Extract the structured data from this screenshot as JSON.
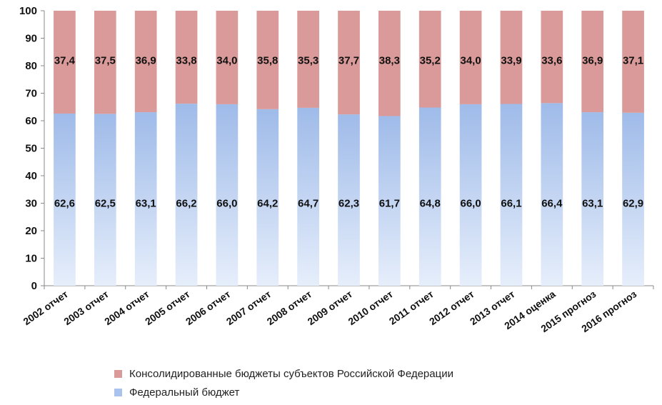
{
  "chart_data": {
    "type": "bar",
    "stacked": true,
    "categories": [
      "2002 отчет",
      "2003 отчет",
      "2004 отчет",
      "2005 отчет",
      "2006 отчет",
      "2007 отчет",
      "2008 отчет",
      "2009 отчет",
      "2010 отчет",
      "2011 отчет",
      "2012 отчет",
      "2013 отчет",
      "2014 оценка",
      "2015 прогноз",
      "2016 прогноз"
    ],
    "series": [
      {
        "name": "Федеральный бюджет",
        "color": "#a9c3ec",
        "values": [
          62.6,
          62.5,
          63.1,
          66.2,
          66.0,
          64.2,
          64.7,
          62.3,
          61.7,
          64.8,
          66.0,
          66.1,
          66.4,
          63.1,
          62.9
        ],
        "labels": [
          "62,6",
          "62,5",
          "63,1",
          "66,2",
          "66,0",
          "64,2",
          "64,7",
          "62,3",
          "61,7",
          "64,8",
          "66,0",
          "66,1",
          "66,4",
          "63,1",
          "62,9"
        ]
      },
      {
        "name": "Консолидированные бюджеты субъектов Российской Федерации",
        "color": "#d99a99",
        "values": [
          37.4,
          37.5,
          36.9,
          33.8,
          34.0,
          35.8,
          35.3,
          37.7,
          38.3,
          35.2,
          34.0,
          33.9,
          33.6,
          36.9,
          37.1
        ],
        "labels": [
          "37,4",
          "37,5",
          "36,9",
          "33,8",
          "34,0",
          "35,8",
          "35,3",
          "37,7",
          "38,3",
          "35,2",
          "34,0",
          "33,9",
          "33,6",
          "36,9",
          "37,1"
        ]
      }
    ],
    "ylim": [
      0,
      100
    ],
    "yticks": [
      "0",
      "10",
      "20",
      "30",
      "40",
      "50",
      "60",
      "70",
      "80",
      "90",
      "100"
    ],
    "legend": "bottom"
  }
}
